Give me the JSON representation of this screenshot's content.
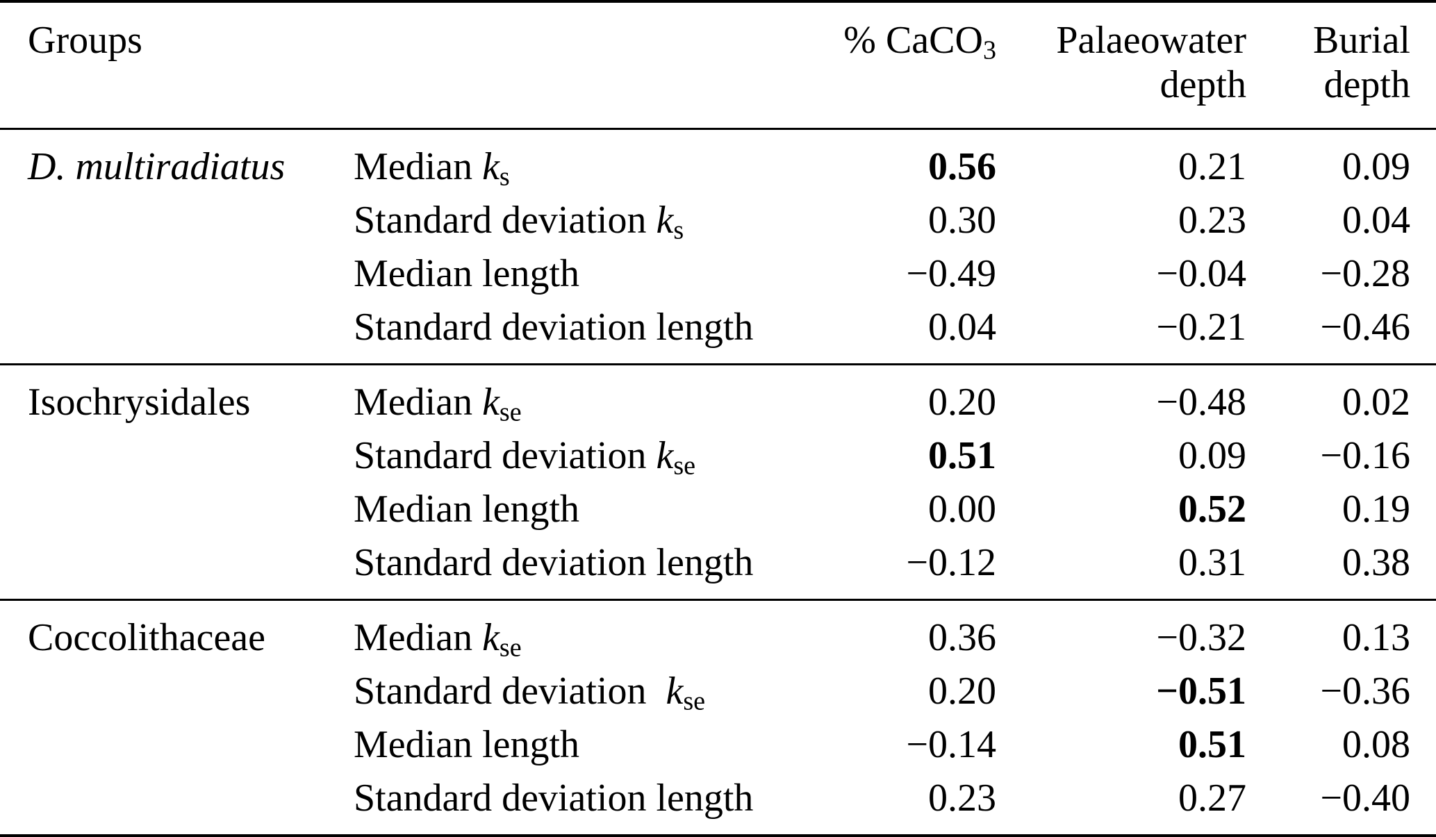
{
  "table": {
    "header": {
      "groups_label": "Groups",
      "columns": [
        {
          "line1": "% CaCO",
          "sub": "3",
          "line2": ""
        },
        {
          "line1": "Palaeowater",
          "sub": "",
          "line2": "depth"
        },
        {
          "line1": "Burial",
          "sub": "",
          "line2": "depth"
        }
      ]
    },
    "groups": [
      {
        "name": "D. multiradiatus",
        "name_italic": true,
        "rows": [
          {
            "label": "Median ",
            "symbol": "k",
            "sub": "s",
            "values": [
              "0.56",
              "0.21",
              "0.09"
            ],
            "bold": [
              true,
              false,
              false
            ]
          },
          {
            "label": "Standard deviation ",
            "symbol": "k",
            "sub": "s",
            "values": [
              "0.30",
              "0.23",
              "0.04"
            ],
            "bold": [
              false,
              false,
              false
            ]
          },
          {
            "label": "Median length",
            "symbol": "",
            "sub": "",
            "values": [
              "−0.49",
              "−0.04",
              "−0.28"
            ],
            "bold": [
              false,
              false,
              false
            ]
          },
          {
            "label": "Standard deviation length",
            "symbol": "",
            "sub": "",
            "values": [
              "0.04",
              "−0.21",
              "−0.46"
            ],
            "bold": [
              false,
              false,
              false
            ]
          }
        ]
      },
      {
        "name": "Isochrysidales",
        "name_italic": false,
        "rows": [
          {
            "label": "Median ",
            "symbol": "k",
            "sub": "se",
            "values": [
              "0.20",
              "−0.48",
              "0.02"
            ],
            "bold": [
              false,
              false,
              false
            ]
          },
          {
            "label": "Standard deviation ",
            "symbol": "k",
            "sub": "se",
            "values": [
              "0.51",
              "0.09",
              "−0.16"
            ],
            "bold": [
              true,
              false,
              false
            ]
          },
          {
            "label": "Median length",
            "symbol": "",
            "sub": "",
            "values": [
              "0.00",
              "0.52",
              "0.19"
            ],
            "bold": [
              false,
              true,
              false
            ]
          },
          {
            "label": "Standard deviation length",
            "symbol": "",
            "sub": "",
            "values": [
              "−0.12",
              "0.31",
              "0.38"
            ],
            "bold": [
              false,
              false,
              false
            ]
          }
        ]
      },
      {
        "name": "Coccolithaceae",
        "name_italic": false,
        "rows": [
          {
            "label": "Median ",
            "symbol": "k",
            "sub": "se",
            "values": [
              "0.36",
              "−0.32",
              "0.13"
            ],
            "bold": [
              false,
              false,
              false
            ]
          },
          {
            "label": "Standard deviation  ",
            "symbol": "k",
            "sub": "se",
            "values": [
              "0.20",
              "−0.51",
              "−0.36"
            ],
            "bold": [
              false,
              true,
              false
            ]
          },
          {
            "label": "Median length",
            "symbol": "",
            "sub": "",
            "values": [
              "−0.14",
              "0.51",
              "0.08"
            ],
            "bold": [
              false,
              true,
              false
            ]
          },
          {
            "label": "Standard deviation length",
            "symbol": "",
            "sub": "",
            "values": [
              "0.23",
              "0.27",
              "−0.40"
            ],
            "bold": [
              false,
              false,
              false
            ]
          }
        ]
      }
    ]
  }
}
